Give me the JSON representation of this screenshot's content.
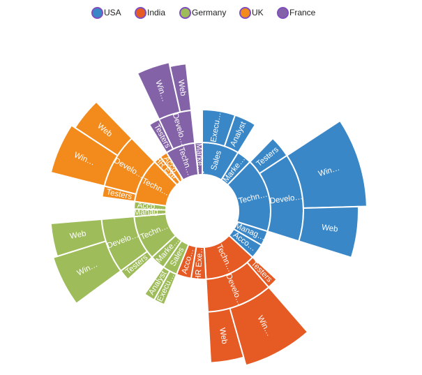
{
  "chart_data": {
    "type": "sunburst",
    "legend_position": "top",
    "legend": [
      {
        "label": "USA",
        "color": "#3a87c8"
      },
      {
        "label": "India",
        "color": "#e65a24"
      },
      {
        "label": "Germany",
        "color": "#9ebc59"
      },
      {
        "label": "UK",
        "color": "#f38b1c"
      },
      {
        "label": "France",
        "color": "#8362a8"
      }
    ],
    "tree": [
      {
        "name": "USA",
        "label": "USA",
        "color": "#3a87c8",
        "children": [
          {
            "name": "Sales",
            "label": "Sales",
            "children": [
              {
                "name": "Executive",
                "label": "Execu…",
                "value": 3
              },
              {
                "name": "Analyst",
                "label": "Analyst",
                "value": 2
              }
            ]
          },
          {
            "name": "Marketing",
            "label": "Marke…",
            "value": 2
          },
          {
            "name": "Technology",
            "label": "Techn…",
            "children": [
              {
                "name": "Testers",
                "label": "Testers",
                "value": 2
              },
              {
                "name": "Developers",
                "label": "Develo…",
                "children": [
                  {
                    "name": "Windows",
                    "label": "Win…",
                    "value": 5
                  },
                  {
                    "name": "Web",
                    "label": "Web",
                    "value": 3
                  }
                ]
              }
            ]
          },
          {
            "name": "Management",
            "label": "Manag…",
            "value": 2
          },
          {
            "name": "Accounts",
            "label": "Acco…",
            "value": 2
          }
        ]
      },
      {
        "name": "India",
        "label": "India",
        "color": "#e65a24",
        "children": [
          {
            "name": "Technology",
            "label": "Techn…",
            "children": [
              {
                "name": "Testers",
                "label": "Testers",
                "value": 1
              },
              {
                "name": "Developers",
                "label": "Develo…",
                "children": [
                  {
                    "name": "Windows",
                    "label": "Win…",
                    "value": 4
                  },
                  {
                    "name": "Web",
                    "label": "Web",
                    "value": 2
                  }
                ]
              }
            ]
          },
          {
            "name": "HR Executives",
            "label": "HR Exe…",
            "value": 2
          },
          {
            "name": "Accounts",
            "label": "Acco…",
            "value": 2
          }
        ]
      },
      {
        "name": "Germany",
        "label": "Ger…",
        "color": "#9ebc59",
        "children": [
          {
            "name": "Sales",
            "label": "Sales",
            "children": [
              {
                "name": "Executive",
                "label": "Execu…",
                "value": 1
              },
              {
                "name": "Analyst",
                "label": "Analyst",
                "value": 1
              }
            ]
          },
          {
            "name": "Marketing",
            "label": "Marke…",
            "value": 2
          },
          {
            "name": "Technology",
            "label": "Techn…",
            "children": [
              {
                "name": "Testers",
                "label": "Testers",
                "value": 1
              },
              {
                "name": "Developers",
                "label": "Develo…",
                "children": [
                  {
                    "name": "Windows",
                    "label": "Win…",
                    "value": 3
                  },
                  {
                    "name": "Web",
                    "label": "Web",
                    "value": 2
                  }
                ]
              }
            ]
          },
          {
            "name": "Management",
            "label": "Manag…",
            "value": 1
          },
          {
            "name": "Accounts",
            "label": "Acco…",
            "value": 1
          }
        ]
      },
      {
        "name": "UK",
        "label": "UK",
        "color": "#f38b1c",
        "children": [
          {
            "name": "Technology",
            "label": "Techn…",
            "children": [
              {
                "name": "Testers",
                "label": "Testers",
                "value": 1
              },
              {
                "name": "Developers",
                "label": "Develo…",
                "children": [
                  {
                    "name": "Windows",
                    "label": "Win…",
                    "value": 3
                  },
                  {
                    "name": "Web",
                    "label": "Web",
                    "value": 2
                  }
                ]
              }
            ]
          },
          {
            "name": "HR Executives",
            "label": "HR Exe…",
            "value": 1
          },
          {
            "name": "Accounts",
            "label": "Acco…",
            "value": 1
          }
        ]
      },
      {
        "name": "France",
        "label": "France",
        "color": "#8362a8",
        "children": [
          {
            "name": "Technology",
            "label": "Techn…",
            "children": [
              {
                "name": "Testers",
                "label": "Testers",
                "value": 1
              },
              {
                "name": "Developers",
                "label": "Develo…",
                "children": [
                  {
                    "name": "Windows",
                    "label": "Win…",
                    "value": 2
                  },
                  {
                    "name": "Web",
                    "label": "Web",
                    "value": 1
                  }
                ]
              }
            ]
          },
          {
            "name": "Marketing",
            "label": "Marke…",
            "value": 1
          }
        ]
      }
    ]
  }
}
